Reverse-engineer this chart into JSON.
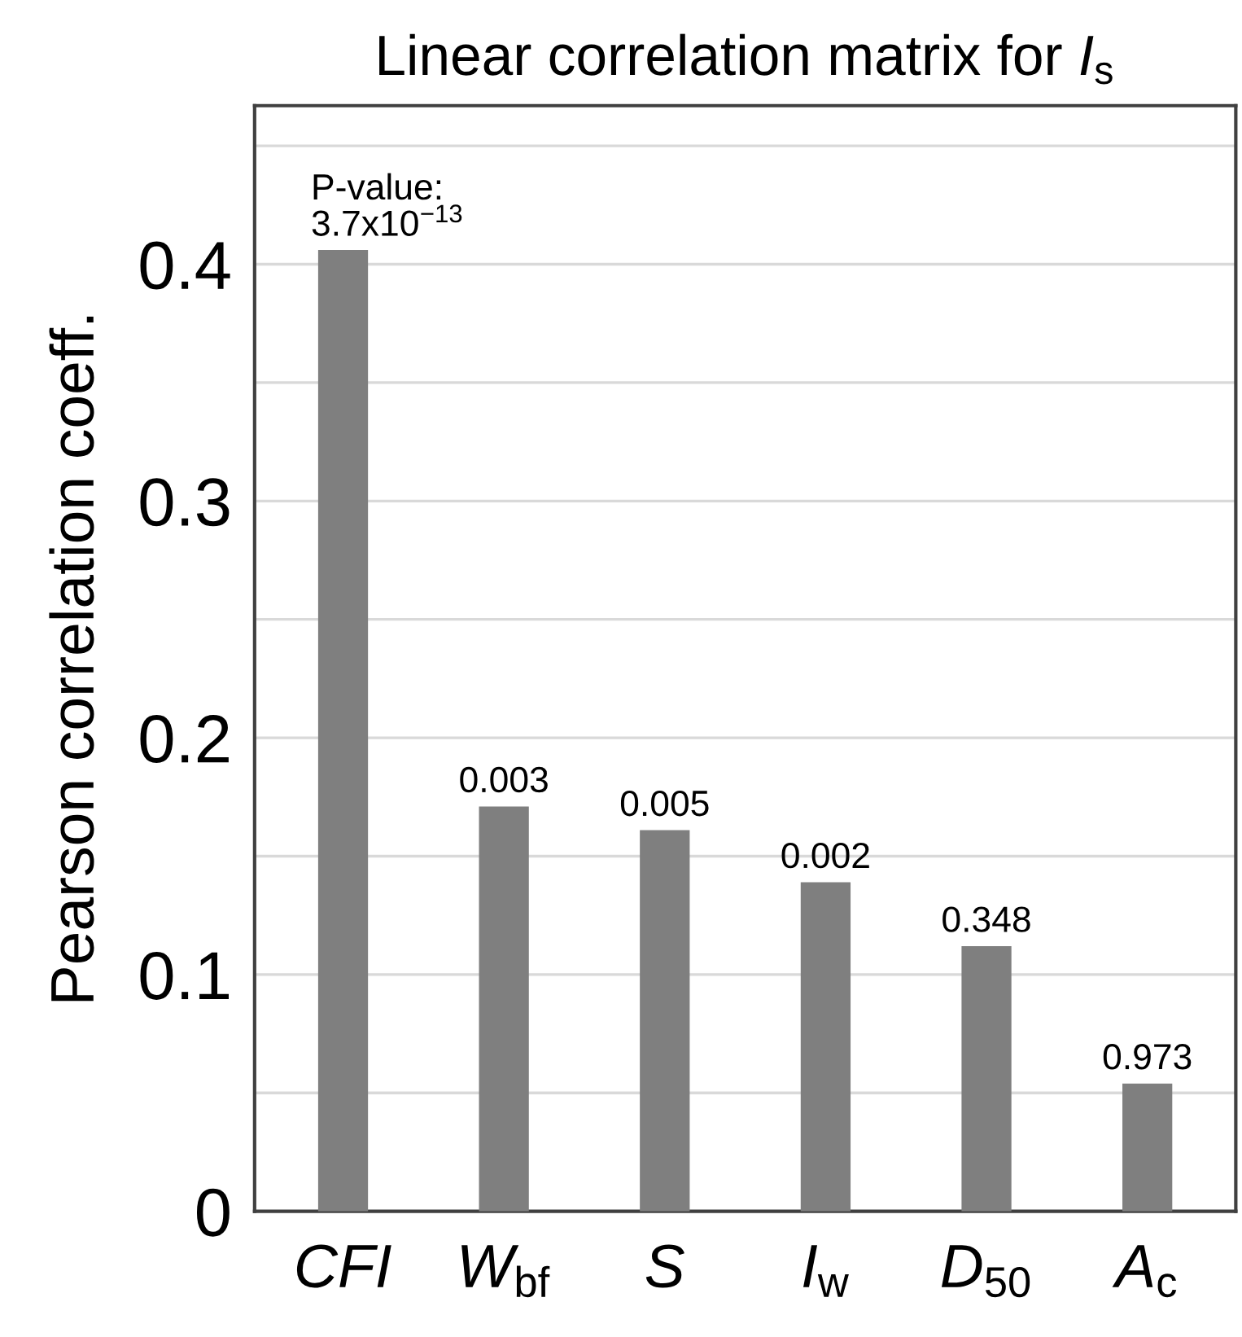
{
  "chart_data": {
    "type": "bar",
    "title": "Linear correlation matrix for I$_{s}$",
    "ylabel": "Pearson correlation coeff.",
    "categories": [
      "CFI",
      "W$_{bf}$",
      "S",
      "I$_{w}$",
      "D$_{50}$",
      "A$_{c}$"
    ],
    "values": [
      0.406,
      0.171,
      0.161,
      0.139,
      0.112,
      0.054
    ],
    "annotations": [
      {
        "text": "P-value:\n3.7x10$^{−13}$",
        "x": "CFI",
        "y": 0.406
      },
      {
        "text": "0.003",
        "x": "W$_{bf}$",
        "y": 0.171
      },
      {
        "text": "0.005",
        "x": "S",
        "y": 0.161
      },
      {
        "text": "0.002",
        "x": "I$_{w}$",
        "y": 0.139
      },
      {
        "text": "0.348",
        "x": "D$_{50}$",
        "y": 0.112
      },
      {
        "text": "0.973",
        "x": "A$_{c}$",
        "y": 0.054
      }
    ],
    "color": "#7f7f7f",
    "ylim": [
      0,
      0.467
    ],
    "yticks": [
      0,
      {
        "value": 0.05,
        "label": null
      },
      0.1,
      {
        "value": 0.15,
        "label": null
      },
      0.2,
      {
        "value": 0.25,
        "label": null
      },
      0.3,
      {
        "value": 0.35,
        "label": null
      },
      0.4,
      {
        "value": 0.45,
        "label": null
      }
    ],
    "grid": "y"
  }
}
